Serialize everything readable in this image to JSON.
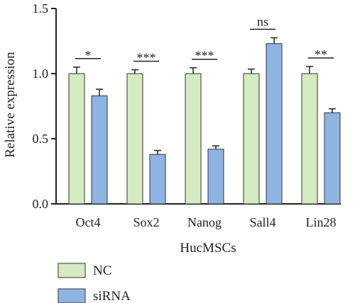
{
  "chart_data": {
    "type": "bar",
    "categories": [
      "Oct4",
      "Sox2",
      "Nanog",
      "Sall4",
      "Lin28"
    ],
    "series": [
      {
        "name": "NC",
        "color": "#d5ebc2",
        "values": [
          1.0,
          1.0,
          1.0,
          1.0,
          1.0
        ],
        "errors": [
          0.05,
          0.03,
          0.045,
          0.035,
          0.055
        ]
      },
      {
        "name": "siRNA",
        "color": "#8fb4e2",
        "values": [
          0.83,
          0.38,
          0.42,
          1.23,
          0.7
        ],
        "errors": [
          0.05,
          0.03,
          0.025,
          0.045,
          0.03
        ]
      }
    ],
    "significance": [
      "*",
      "***",
      "***",
      "ns",
      "**"
    ],
    "xlabel": "HucMSCs",
    "ylabel": "Relative expression",
    "ylim": [
      0,
      1.5
    ],
    "yticks": [
      "0.0",
      "0.5",
      "1.0",
      "1.5"
    ],
    "grid": false,
    "legend_position": "bottom-left"
  }
}
